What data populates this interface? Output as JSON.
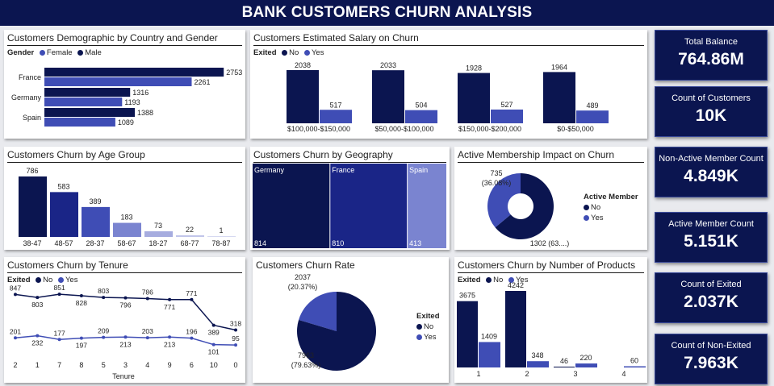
{
  "title": "BANK CUSTOMERS CHURN ANALYSIS",
  "colors": {
    "dark": "#0b1550",
    "mid": "#3f4db5",
    "light": "#7a84d0",
    "lighter": "#a6acdf",
    "accent": "#4350c0"
  },
  "kpis": [
    {
      "label": "Total Balance",
      "value": "764.86M"
    },
    {
      "label": "Count of Customers",
      "value": "10K"
    },
    {
      "label": "Non-Active Member Count",
      "value": "4.849K"
    },
    {
      "label": "Active Member Count",
      "value": "5.151K"
    },
    {
      "label": "Count of Exited",
      "value": "2.037K"
    },
    {
      "label": "Count of Non-Exited",
      "value": "7.963K"
    }
  ],
  "panels": {
    "demo": {
      "title": "Customers Demographic by Country and Gender",
      "legend_title": "Gender",
      "legend": [
        "Female",
        "Male"
      ]
    },
    "salary": {
      "title": "Customers Estimated Salary on Churn",
      "legend_title": "Exited",
      "legend": [
        "No",
        "Yes"
      ]
    },
    "age": {
      "title": "Customers Churn by Age Group"
    },
    "geo": {
      "title": "Customers Churn by Geography"
    },
    "membership": {
      "title": "Active Membership Impact on Churn",
      "legend_title": "Active Member",
      "legend": [
        "No",
        "Yes"
      ]
    },
    "tenure": {
      "title": "Customers Churn by Tenure",
      "legend_title": "Exited",
      "legend": [
        "No",
        "Yes"
      ]
    },
    "rate": {
      "title": "Customers Churn Rate",
      "legend_title": "Exited",
      "legend": [
        "No",
        "Yes"
      ]
    },
    "products": {
      "title": "Customers Churn by Number of Products",
      "legend_title": "Exited",
      "legend": [
        "No",
        "Yes"
      ]
    }
  },
  "chart_data": [
    {
      "id": "demo",
      "type": "bar",
      "orientation": "horizontal",
      "categories": [
        "France",
        "Germany",
        "Spain"
      ],
      "series": [
        {
          "name": "Female",
          "values": [
            2261,
            1193,
            1089
          ]
        },
        {
          "name": "Male",
          "values": [
            2753,
            1316,
            1388
          ]
        }
      ],
      "data_labels": [
        "2753",
        "2261",
        "1316",
        "1193",
        "1388",
        "1089"
      ]
    },
    {
      "id": "salary",
      "type": "bar",
      "categories": [
        "$100,000-$150,000",
        "$50,000-$100,000",
        "$150,000-$200,000",
        "$0-$50,000"
      ],
      "series": [
        {
          "name": "No",
          "values": [
            2038,
            2033,
            1928,
            1964
          ]
        },
        {
          "name": "Yes",
          "values": [
            517,
            504,
            527,
            489
          ]
        }
      ]
    },
    {
      "id": "age",
      "type": "bar",
      "categories": [
        "38-47",
        "48-57",
        "28-37",
        "58-67",
        "18-27",
        "68-77",
        "78-87"
      ],
      "values": [
        786,
        583,
        389,
        183,
        73,
        22,
        1
      ]
    },
    {
      "id": "geo",
      "type": "treemap",
      "categories": [
        "Germany",
        "France",
        "Spain"
      ],
      "values": [
        814,
        810,
        413
      ]
    },
    {
      "id": "membership",
      "type": "pie",
      "donut": true,
      "categories": [
        "No",
        "Yes"
      ],
      "values": [
        1302,
        735
      ],
      "labels": [
        "1302 (63....)",
        "735\n(36.08%)"
      ]
    },
    {
      "id": "tenure",
      "type": "line",
      "categories": [
        "2",
        "1",
        "7",
        "8",
        "5",
        "3",
        "4",
        "9",
        "6",
        "10",
        "0"
      ],
      "xlabel": "Tenure",
      "series": [
        {
          "name": "No",
          "values": [
            847,
            803,
            851,
            828,
            803,
            796,
            786,
            771,
            771,
            389,
            318
          ]
        },
        {
          "name": "Yes",
          "values": [
            201,
            232,
            177,
            197,
            209,
            213,
            203,
            213,
            196,
            101,
            95
          ]
        }
      ]
    },
    {
      "id": "rate",
      "type": "pie",
      "categories": [
        "No",
        "Yes"
      ],
      "values": [
        7963,
        2037
      ],
      "labels": [
        "7963\n(79.63%)",
        "2037\n(20.37%)"
      ]
    },
    {
      "id": "products",
      "type": "bar",
      "categories": [
        "1",
        "2",
        "3",
        "4"
      ],
      "series": [
        {
          "name": "No",
          "values": [
            3675,
            4242,
            46,
            0
          ]
        },
        {
          "name": "Yes",
          "values": [
            1409,
            348,
            220,
            60
          ]
        }
      ]
    }
  ]
}
